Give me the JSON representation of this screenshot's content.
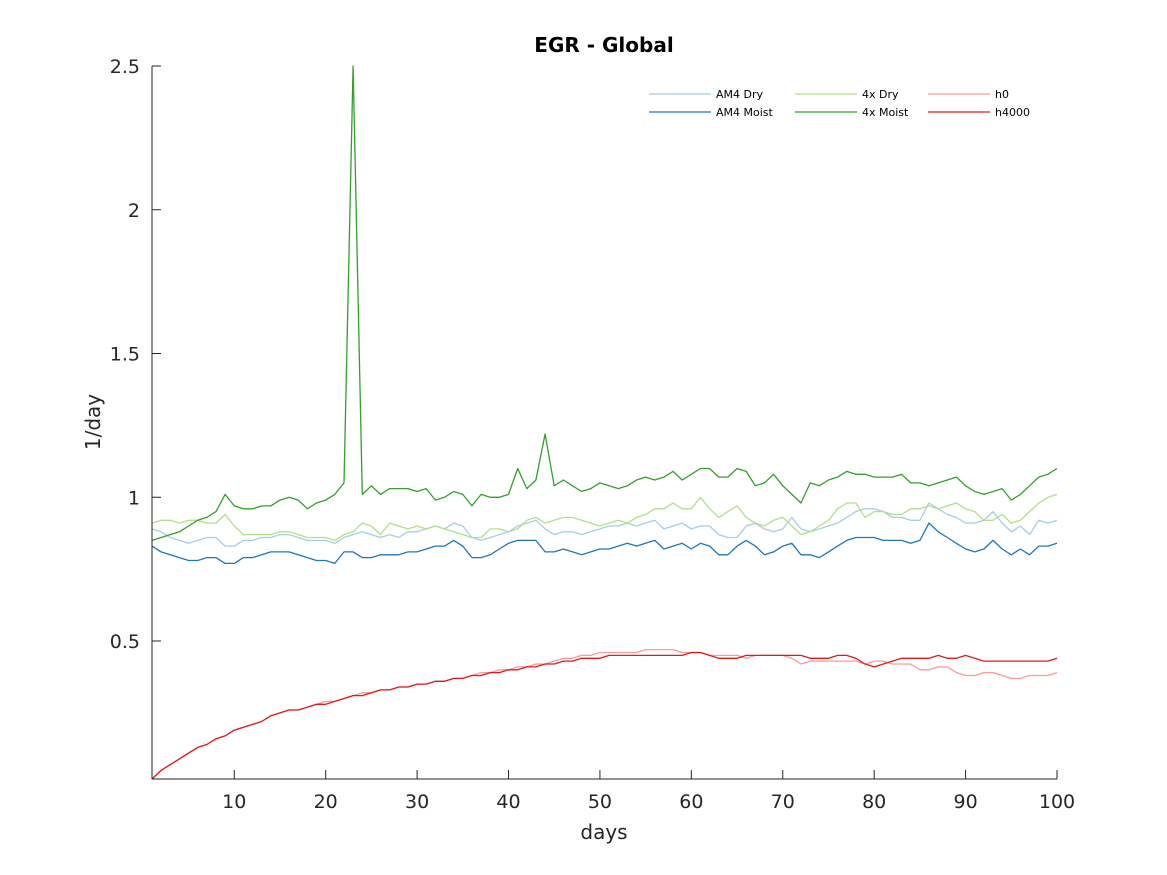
{
  "chart_data": {
    "type": "line",
    "title": "EGR - Global",
    "xlabel": "days",
    "ylabel": "1/day",
    "xlim": [
      1,
      100
    ],
    "ylim": [
      0.02,
      2.5
    ],
    "xticks": [
      10,
      20,
      30,
      40,
      50,
      60,
      70,
      80,
      90,
      100
    ],
    "yticks": [
      0.5,
      1,
      1.5,
      2,
      2.5
    ],
    "ytick_labels": [
      "0.5",
      "1",
      "1.5",
      "2",
      "2.5"
    ],
    "grid": false,
    "legend_position": "top-right",
    "x": [
      1,
      2,
      3,
      4,
      5,
      6,
      7,
      8,
      9,
      10,
      11,
      12,
      13,
      14,
      15,
      16,
      17,
      18,
      19,
      20,
      21,
      22,
      23,
      24,
      25,
      26,
      27,
      28,
      29,
      30,
      31,
      32,
      33,
      34,
      35,
      36,
      37,
      38,
      39,
      40,
      41,
      42,
      43,
      44,
      45,
      46,
      47,
      48,
      49,
      50,
      51,
      52,
      53,
      54,
      55,
      56,
      57,
      58,
      59,
      60,
      61,
      62,
      63,
      64,
      65,
      66,
      67,
      68,
      69,
      70,
      71,
      72,
      73,
      74,
      75,
      76,
      77,
      78,
      79,
      80,
      81,
      82,
      83,
      84,
      85,
      86,
      87,
      88,
      89,
      90,
      91,
      92,
      93,
      94,
      95,
      96,
      97,
      98,
      99,
      100
    ],
    "series": [
      {
        "name": "AM4 Dry",
        "color": "#a6cee3",
        "values": [
          0.89,
          0.88,
          0.86,
          0.85,
          0.84,
          0.85,
          0.86,
          0.86,
          0.83,
          0.83,
          0.85,
          0.85,
          0.86,
          0.86,
          0.87,
          0.87,
          0.86,
          0.85,
          0.85,
          0.85,
          0.84,
          0.86,
          0.87,
          0.88,
          0.87,
          0.86,
          0.87,
          0.86,
          0.88,
          0.88,
          0.89,
          0.9,
          0.89,
          0.91,
          0.9,
          0.86,
          0.85,
          0.86,
          0.87,
          0.88,
          0.9,
          0.91,
          0.92,
          0.89,
          0.87,
          0.88,
          0.88,
          0.87,
          0.88,
          0.89,
          0.9,
          0.9,
          0.91,
          0.9,
          0.91,
          0.92,
          0.89,
          0.9,
          0.91,
          0.89,
          0.9,
          0.9,
          0.87,
          0.86,
          0.86,
          0.9,
          0.91,
          0.89,
          0.88,
          0.89,
          0.93,
          0.89,
          0.88,
          0.89,
          0.9,
          0.91,
          0.93,
          0.95,
          0.96,
          0.96,
          0.95,
          0.93,
          0.93,
          0.92,
          0.92,
          0.98,
          0.96,
          0.94,
          0.93,
          0.91,
          0.91,
          0.92,
          0.95,
          0.91,
          0.88,
          0.9,
          0.87,
          0.92,
          0.91,
          0.92
        ]
      },
      {
        "name": "AM4 Moist",
        "color": "#1f78b4",
        "values": [
          0.83,
          0.81,
          0.8,
          0.79,
          0.78,
          0.78,
          0.79,
          0.79,
          0.77,
          0.77,
          0.79,
          0.79,
          0.8,
          0.81,
          0.81,
          0.81,
          0.8,
          0.79,
          0.78,
          0.78,
          0.77,
          0.81,
          0.81,
          0.79,
          0.79,
          0.8,
          0.8,
          0.8,
          0.81,
          0.81,
          0.82,
          0.83,
          0.83,
          0.85,
          0.83,
          0.79,
          0.79,
          0.8,
          0.82,
          0.84,
          0.85,
          0.85,
          0.85,
          0.81,
          0.81,
          0.82,
          0.81,
          0.8,
          0.81,
          0.82,
          0.82,
          0.83,
          0.84,
          0.83,
          0.84,
          0.85,
          0.82,
          0.83,
          0.84,
          0.82,
          0.84,
          0.83,
          0.8,
          0.8,
          0.83,
          0.85,
          0.83,
          0.8,
          0.81,
          0.83,
          0.84,
          0.8,
          0.8,
          0.79,
          0.81,
          0.83,
          0.85,
          0.86,
          0.86,
          0.86,
          0.85,
          0.85,
          0.85,
          0.84,
          0.85,
          0.91,
          0.88,
          0.86,
          0.84,
          0.82,
          0.81,
          0.82,
          0.85,
          0.82,
          0.8,
          0.82,
          0.8,
          0.83,
          0.83,
          0.84
        ]
      },
      {
        "name": "4x Dry",
        "color": "#b2df8a",
        "values": [
          0.91,
          0.92,
          0.92,
          0.91,
          0.92,
          0.92,
          0.91,
          0.91,
          0.94,
          0.9,
          0.87,
          0.87,
          0.87,
          0.87,
          0.88,
          0.88,
          0.87,
          0.86,
          0.86,
          0.86,
          0.85,
          0.87,
          0.88,
          0.91,
          0.9,
          0.87,
          0.91,
          0.9,
          0.89,
          0.9,
          0.89,
          0.9,
          0.89,
          0.88,
          0.87,
          0.86,
          0.86,
          0.89,
          0.89,
          0.88,
          0.89,
          0.92,
          0.93,
          0.91,
          0.92,
          0.93,
          0.93,
          0.92,
          0.91,
          0.9,
          0.91,
          0.92,
          0.91,
          0.93,
          0.94,
          0.96,
          0.96,
          0.98,
          0.96,
          0.96,
          1.0,
          0.96,
          0.93,
          0.95,
          0.97,
          0.93,
          0.91,
          0.9,
          0.92,
          0.93,
          0.9,
          0.87,
          0.88,
          0.9,
          0.92,
          0.96,
          0.98,
          0.98,
          0.93,
          0.95,
          0.95,
          0.94,
          0.94,
          0.96,
          0.96,
          0.97,
          0.96,
          0.97,
          0.98,
          0.96,
          0.95,
          0.92,
          0.92,
          0.94,
          0.91,
          0.92,
          0.95,
          0.98,
          1.0,
          1.01
        ]
      },
      {
        "name": "4x Moist",
        "color": "#33a02c",
        "values": [
          0.85,
          0.86,
          0.87,
          0.88,
          0.9,
          0.92,
          0.93,
          0.95,
          1.01,
          0.97,
          0.96,
          0.96,
          0.97,
          0.97,
          0.99,
          1.0,
          0.99,
          0.96,
          0.98,
          0.99,
          1.01,
          1.05,
          2.5,
          1.01,
          1.04,
          1.01,
          1.03,
          1.03,
          1.03,
          1.02,
          1.03,
          0.99,
          1.0,
          1.02,
          1.01,
          0.97,
          1.01,
          1.0,
          1.0,
          1.01,
          1.1,
          1.03,
          1.06,
          1.22,
          1.04,
          1.06,
          1.04,
          1.02,
          1.03,
          1.05,
          1.04,
          1.03,
          1.04,
          1.06,
          1.07,
          1.06,
          1.07,
          1.09,
          1.06,
          1.08,
          1.1,
          1.1,
          1.07,
          1.07,
          1.1,
          1.09,
          1.04,
          1.05,
          1.08,
          1.04,
          1.01,
          0.98,
          1.05,
          1.04,
          1.06,
          1.07,
          1.09,
          1.08,
          1.08,
          1.07,
          1.07,
          1.07,
          1.08,
          1.05,
          1.05,
          1.04,
          1.05,
          1.06,
          1.07,
          1.04,
          1.02,
          1.01,
          1.02,
          1.03,
          0.99,
          1.01,
          1.04,
          1.07,
          1.08,
          1.1
        ]
      },
      {
        "name": "h0",
        "color": "#fb9a99",
        "values": [
          0.02,
          0.05,
          0.07,
          0.09,
          0.11,
          0.13,
          0.14,
          0.16,
          0.17,
          0.19,
          0.2,
          0.21,
          0.22,
          0.24,
          0.25,
          0.26,
          0.26,
          0.27,
          0.28,
          0.29,
          0.29,
          0.3,
          0.31,
          0.32,
          0.32,
          0.33,
          0.33,
          0.34,
          0.34,
          0.35,
          0.35,
          0.36,
          0.36,
          0.37,
          0.37,
          0.38,
          0.39,
          0.39,
          0.4,
          0.4,
          0.41,
          0.41,
          0.42,
          0.42,
          0.43,
          0.44,
          0.44,
          0.45,
          0.45,
          0.46,
          0.46,
          0.46,
          0.46,
          0.46,
          0.47,
          0.47,
          0.47,
          0.47,
          0.46,
          0.46,
          0.46,
          0.45,
          0.45,
          0.45,
          0.45,
          0.44,
          0.45,
          0.45,
          0.45,
          0.45,
          0.44,
          0.42,
          0.43,
          0.43,
          0.43,
          0.43,
          0.43,
          0.43,
          0.42,
          0.43,
          0.43,
          0.42,
          0.42,
          0.42,
          0.4,
          0.4,
          0.41,
          0.41,
          0.39,
          0.38,
          0.38,
          0.39,
          0.39,
          0.38,
          0.37,
          0.37,
          0.38,
          0.38,
          0.38,
          0.39
        ]
      },
      {
        "name": "h4000",
        "color": "#e31a1c",
        "values": [
          0.02,
          0.05,
          0.07,
          0.09,
          0.11,
          0.13,
          0.14,
          0.16,
          0.17,
          0.19,
          0.2,
          0.21,
          0.22,
          0.24,
          0.25,
          0.26,
          0.26,
          0.27,
          0.28,
          0.28,
          0.29,
          0.3,
          0.31,
          0.31,
          0.32,
          0.33,
          0.33,
          0.34,
          0.34,
          0.35,
          0.35,
          0.36,
          0.36,
          0.37,
          0.37,
          0.38,
          0.38,
          0.39,
          0.39,
          0.4,
          0.4,
          0.41,
          0.41,
          0.42,
          0.42,
          0.43,
          0.43,
          0.44,
          0.44,
          0.44,
          0.45,
          0.45,
          0.45,
          0.45,
          0.45,
          0.45,
          0.45,
          0.45,
          0.45,
          0.46,
          0.46,
          0.45,
          0.44,
          0.44,
          0.44,
          0.45,
          0.45,
          0.45,
          0.45,
          0.45,
          0.45,
          0.45,
          0.44,
          0.44,
          0.44,
          0.45,
          0.45,
          0.44,
          0.42,
          0.41,
          0.42,
          0.43,
          0.44,
          0.44,
          0.44,
          0.44,
          0.45,
          0.44,
          0.44,
          0.45,
          0.44,
          0.43,
          0.43,
          0.43,
          0.43,
          0.43,
          0.43,
          0.43,
          0.43,
          0.44
        ]
      }
    ]
  }
}
